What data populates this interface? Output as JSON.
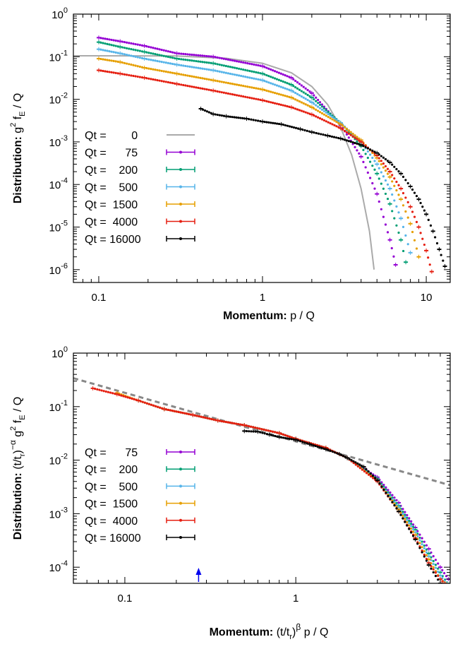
{
  "chart_data": [
    {
      "type": "scatter",
      "xscale": "log",
      "yscale": "log",
      "xlim": [
        0.07,
        14
      ],
      "ylim": [
        5e-07,
        1
      ],
      "grid": false,
      "legend_position": "left",
      "ylabel_bold": "Distribution:",
      "ylabel_formula": "g² f_E / Q",
      "xlabel_bold": "Momentum:",
      "xlabel_formula": "p / Q",
      "x_ticks": [
        {
          "v": 0.1,
          "label": "0.1"
        },
        {
          "v": 1,
          "label": "1"
        },
        {
          "v": 10,
          "label": "10"
        }
      ],
      "y_ticks": [
        {
          "v": 1,
          "label": "10^0"
        },
        {
          "v": 0.1,
          "label": "10^-1"
        },
        {
          "v": 0.01,
          "label": "10^-2"
        },
        {
          "v": 0.001,
          "label": "10^-3"
        },
        {
          "v": 0.0001,
          "label": "10^-4"
        },
        {
          "v": 1e-05,
          "label": "10^-5"
        },
        {
          "v": 1e-06,
          "label": "10^-6"
        }
      ],
      "series": [
        {
          "name": "Qt =        0",
          "color": "#aaaaaa",
          "style": "line",
          "x": [
            0.07,
            0.3,
            0.6,
            1.0,
            1.5,
            2.0,
            2.5,
            3.0,
            3.5,
            4.0,
            4.5,
            4.8
          ],
          "y": [
            0.105,
            0.104,
            0.092,
            0.07,
            0.042,
            0.02,
            0.0075,
            0.0022,
            0.0005,
            8e-05,
            8e-06,
            1e-06
          ]
        },
        {
          "name": "Qt =      75",
          "color": "#9400d3",
          "style": "points",
          "x": [
            0.1,
            0.135,
            0.19,
            0.3,
            0.5,
            1.0,
            1.5,
            2.0,
            3.0,
            4.0,
            5.0,
            6.0,
            6.5
          ],
          "y": [
            0.28,
            0.23,
            0.18,
            0.12,
            0.1,
            0.06,
            0.032,
            0.014,
            0.0025,
            0.00045,
            6e-05,
            5e-06,
            1.3e-06
          ]
        },
        {
          "name": "Qt =    200",
          "color": "#009e73",
          "style": "points",
          "x": [
            0.1,
            0.135,
            0.19,
            0.3,
            0.5,
            1.0,
            1.5,
            2.0,
            3.0,
            4.0,
            5.0,
            6.0,
            7.0,
            7.5
          ],
          "y": [
            0.22,
            0.17,
            0.13,
            0.09,
            0.07,
            0.04,
            0.022,
            0.011,
            0.0028,
            0.0008,
            0.00018,
            3.5e-05,
            5e-06,
            1.5e-06
          ]
        },
        {
          "name": "Qt =    500",
          "color": "#56b4e9",
          "style": "points",
          "x": [
            0.1,
            0.135,
            0.19,
            0.3,
            0.5,
            1.0,
            1.5,
            2.0,
            3.0,
            4.0,
            5.0,
            6.0,
            7.0,
            8.0
          ],
          "y": [
            0.15,
            0.12,
            0.09,
            0.065,
            0.048,
            0.028,
            0.016,
            0.0085,
            0.0028,
            0.001,
            0.0003,
            8e-05,
            1.6e-05,
            2.5e-06
          ]
        },
        {
          "name": "Qt =  1500",
          "color": "#e69f00",
          "style": "points",
          "x": [
            0.1,
            0.135,
            0.19,
            0.3,
            0.5,
            1.0,
            1.5,
            2.0,
            3.0,
            4.0,
            5.0,
            6.0,
            7.0,
            8.0,
            9.0
          ],
          "y": [
            0.09,
            0.075,
            0.055,
            0.04,
            0.028,
            0.017,
            0.011,
            0.0065,
            0.0026,
            0.0011,
            0.00042,
            0.00015,
            4.5e-05,
            1.2e-05,
            2e-06
          ]
        },
        {
          "name": "Qt =  4000",
          "color": "#e51e10",
          "style": "points",
          "x": [
            0.1,
            0.135,
            0.19,
            0.3,
            0.5,
            1.0,
            1.5,
            2.0,
            3.0,
            4.0,
            5.0,
            6.0,
            7.0,
            8.0,
            9.0,
            10.0,
            10.8
          ],
          "y": [
            0.048,
            0.04,
            0.032,
            0.023,
            0.016,
            0.0095,
            0.0065,
            0.0044,
            0.0021,
            0.001,
            0.00048,
            0.0002,
            8e-05,
            3e-05,
            1e-05,
            2.8e-06,
            9e-07
          ]
        },
        {
          "name": "Qt = 16000",
          "color": "#000000",
          "style": "points",
          "x": [
            0.42,
            0.5,
            0.6,
            0.8,
            1.0,
            1.3,
            1.7,
            2.0,
            2.5,
            3.0,
            4.0,
            5.0,
            6.0,
            7.0,
            8.0,
            9.0,
            10.0,
            11.0,
            12.0,
            13.0
          ],
          "y": [
            0.006,
            0.0045,
            0.004,
            0.0035,
            0.003,
            0.0026,
            0.002,
            0.0017,
            0.0014,
            0.0012,
            0.00085,
            0.00055,
            0.00033,
            0.00018,
            9e-05,
            4.5e-05,
            2e-05,
            8e-06,
            3e-06,
            1.2e-06
          ]
        }
      ]
    },
    {
      "type": "scatter",
      "xscale": "log",
      "yscale": "log",
      "xlim": [
        0.05,
        8
      ],
      "ylim": [
        5e-05,
        1
      ],
      "grid": false,
      "legend_position": "left",
      "ylabel_bold": "Distribution:",
      "ylabel_formula": "(t/t_r)^-α g² f_E / Q",
      "xlabel_bold": "Momentum:",
      "xlabel_formula": "(t/t_r)^β p / Q",
      "x_ticks": [
        {
          "v": 0.1,
          "label": "0.1"
        },
        {
          "v": 1,
          "label": "1"
        }
      ],
      "y_ticks": [
        {
          "v": 1,
          "label": "10^0"
        },
        {
          "v": 0.1,
          "label": "10^-1"
        },
        {
          "v": 0.01,
          "label": "10^-2"
        },
        {
          "v": 0.001,
          "label": "10^-3"
        },
        {
          "v": 0.0001,
          "label": "10^-4"
        }
      ],
      "arrow_x": 0.27,
      "fit_line": {
        "color": "#888888",
        "x": [
          0.05,
          8.0
        ],
        "y": [
          0.34,
          0.0034
        ]
      },
      "series": [
        {
          "name": "Qt =      75",
          "color": "#9400d3",
          "style": "points",
          "x": [
            0.25,
            0.35,
            0.5,
            0.8,
            1.0,
            1.5,
            2.0,
            3.0,
            4.0,
            5.0,
            6.0,
            7.0,
            7.8
          ],
          "y": [
            0.07,
            0.055,
            0.045,
            0.032,
            0.025,
            0.017,
            0.011,
            0.0048,
            0.0016,
            0.00055,
            0.00022,
            0.0001,
            6e-05
          ]
        },
        {
          "name": "Qt =    200",
          "color": "#009e73",
          "style": "points",
          "x": [
            0.17,
            0.25,
            0.35,
            0.5,
            0.8,
            1.0,
            1.5,
            2.0,
            3.0,
            4.0,
            5.0,
            6.0,
            7.0,
            7.7
          ],
          "y": [
            0.09,
            0.07,
            0.055,
            0.045,
            0.032,
            0.025,
            0.017,
            0.011,
            0.0045,
            0.0014,
            0.0005,
            0.00018,
            8e-05,
            5e-05
          ]
        },
        {
          "name": "Qt =    500",
          "color": "#56b4e9",
          "style": "points",
          "x": [
            0.12,
            0.17,
            0.25,
            0.35,
            0.5,
            0.8,
            1.0,
            1.5,
            2.0,
            3.0,
            4.0,
            5.0,
            6.0,
            7.0,
            7.6
          ],
          "y": [
            0.13,
            0.09,
            0.07,
            0.055,
            0.045,
            0.032,
            0.025,
            0.017,
            0.011,
            0.0043,
            0.0013,
            0.00045,
            0.00016,
            7e-05,
            5e-05
          ]
        },
        {
          "name": "Qt =  1500",
          "color": "#e69f00",
          "style": "points",
          "x": [
            0.09,
            0.12,
            0.17,
            0.25,
            0.35,
            0.5,
            0.8,
            1.0,
            1.5,
            2.0,
            3.0,
            4.0,
            5.0,
            6.0,
            7.0,
            7.5
          ],
          "y": [
            0.18,
            0.13,
            0.09,
            0.07,
            0.055,
            0.045,
            0.032,
            0.025,
            0.017,
            0.011,
            0.0042,
            0.0012,
            0.0004,
            0.00014,
            6e-05,
            5e-05
          ]
        },
        {
          "name": "Qt =  4000",
          "color": "#e51e10",
          "style": "points",
          "x": [
            0.065,
            0.09,
            0.12,
            0.17,
            0.25,
            0.35,
            0.5,
            0.8,
            1.0,
            1.5,
            2.0,
            3.0,
            4.0,
            5.0,
            6.0,
            7.0,
            7.4
          ],
          "y": [
            0.22,
            0.17,
            0.13,
            0.09,
            0.07,
            0.055,
            0.045,
            0.032,
            0.025,
            0.017,
            0.011,
            0.004,
            0.0011,
            0.00035,
            0.00012,
            6e-05,
            5e-05
          ]
        },
        {
          "name": "Qt = 16000",
          "color": "#000000",
          "style": "points",
          "x": [
            0.5,
            0.6,
            0.7,
            0.8,
            1.0,
            1.2,
            1.5,
            1.8,
            2.0,
            2.5,
            3.0,
            4.0,
            5.0,
            6.0,
            7.0
          ],
          "y": [
            0.035,
            0.034,
            0.03,
            0.027,
            0.024,
            0.02,
            0.016,
            0.013,
            0.011,
            0.0075,
            0.0042,
            0.0011,
            0.00033,
            0.00011,
            5e-05
          ]
        }
      ]
    }
  ]
}
